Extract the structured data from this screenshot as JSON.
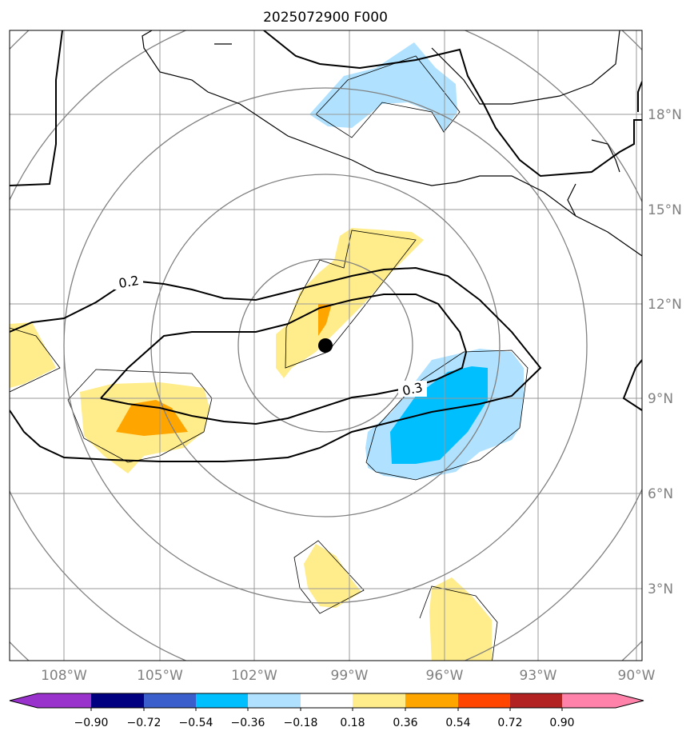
{
  "title": "2025072900 F000",
  "lon_labels": [
    "108°W",
    "105°W",
    "102°W",
    "99°W",
    "96°W",
    "93°W",
    "90°W"
  ],
  "lat_labels": [
    "18°N",
    "15°N",
    "12°N",
    "9°N",
    "6°N",
    "3°N"
  ],
  "contour_labels": [
    "0.2",
    "0.3"
  ],
  "colorbar": {
    "labels": [
      "−0.90",
      "−0.72",
      "−0.54",
      "−0.36",
      "−0.18",
      "0.18",
      "0.36",
      "0.54",
      "0.72",
      "0.90"
    ],
    "colors": [
      "#9932cc",
      "#000080",
      "#3a5fcd",
      "#00bfff",
      "#b0e2ff",
      "#ffffff",
      "#ffec8b",
      "#ffa500",
      "#ff4500",
      "#b22222",
      "#ff82ab"
    ]
  },
  "center_marker": {
    "lat": 10.7,
    "lon": -99.8
  }
}
